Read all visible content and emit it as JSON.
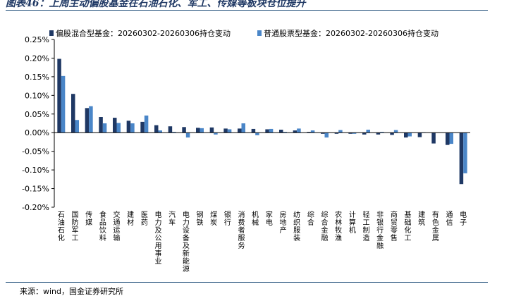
{
  "figure_title": "图表46：上周主动偏股基金在石油石化、军工、传媒等板块仓位提升",
  "source_note": "来源：wind，国金证券研究所",
  "colors": {
    "series1": "#1f3864",
    "series2": "#4a86c8",
    "rule": "#1f4e79"
  },
  "chart_data": {
    "type": "bar",
    "title": "",
    "xlabel": "",
    "ylabel": "",
    "ylim": [
      -0.2,
      0.25
    ],
    "yticks": [
      0.25,
      0.2,
      0.15,
      0.1,
      0.05,
      0.0,
      -0.05,
      -0.1,
      -0.15,
      -0.2
    ],
    "ytick_labels": [
      "0.25%",
      "0.20%",
      "0.15%",
      "0.10%",
      "0.05%",
      "0.00%",
      "-0.05%",
      "-0.10%",
      "-0.15%",
      "-0.20%"
    ],
    "grid": false,
    "legend_position": "top",
    "categories": [
      "石油石化",
      "国防军工",
      "传媒",
      "食品饮料",
      "交通运输",
      "建材",
      "医药",
      "电力及公用事业",
      "汽车",
      "电力设备及新能源",
      "钢铁",
      "煤炭",
      "银行",
      "消费者服务",
      "机械",
      "家电",
      "房地产",
      "纺织服装",
      "综合",
      "综合金融",
      "农林牧渔",
      "计算机",
      "轻工制造",
      "非银行金融",
      "商贸零售",
      "基础化工",
      "建筑",
      "有色金属",
      "通信",
      "电子"
    ],
    "series": [
      {
        "name": "偏股混合型基金：20260302-20260306持仓变动",
        "values": [
          0.198,
          0.104,
          0.066,
          0.042,
          0.04,
          0.032,
          0.029,
          0.02,
          0.017,
          0.015,
          0.013,
          0.014,
          0.011,
          0.011,
          0.01,
          0.009,
          0.008,
          0.006,
          0.002,
          -0.003,
          -0.003,
          -0.003,
          -0.005,
          -0.005,
          -0.006,
          -0.013,
          -0.012,
          -0.029,
          -0.033,
          -0.138
        ]
      },
      {
        "name": "普通股票型基金：20260302-20260306持仓变动",
        "values": [
          0.152,
          0.034,
          0.071,
          0.025,
          0.026,
          0.025,
          0.046,
          0.006,
          0.002,
          -0.013,
          0.012,
          -0.005,
          0.009,
          0.025,
          -0.007,
          0.01,
          0.002,
          0.011,
          0.006,
          -0.013,
          0.007,
          -0.003,
          0.008,
          0.002,
          0.007,
          -0.01,
          0.001,
          0.0,
          -0.03,
          -0.109
        ]
      }
    ]
  }
}
